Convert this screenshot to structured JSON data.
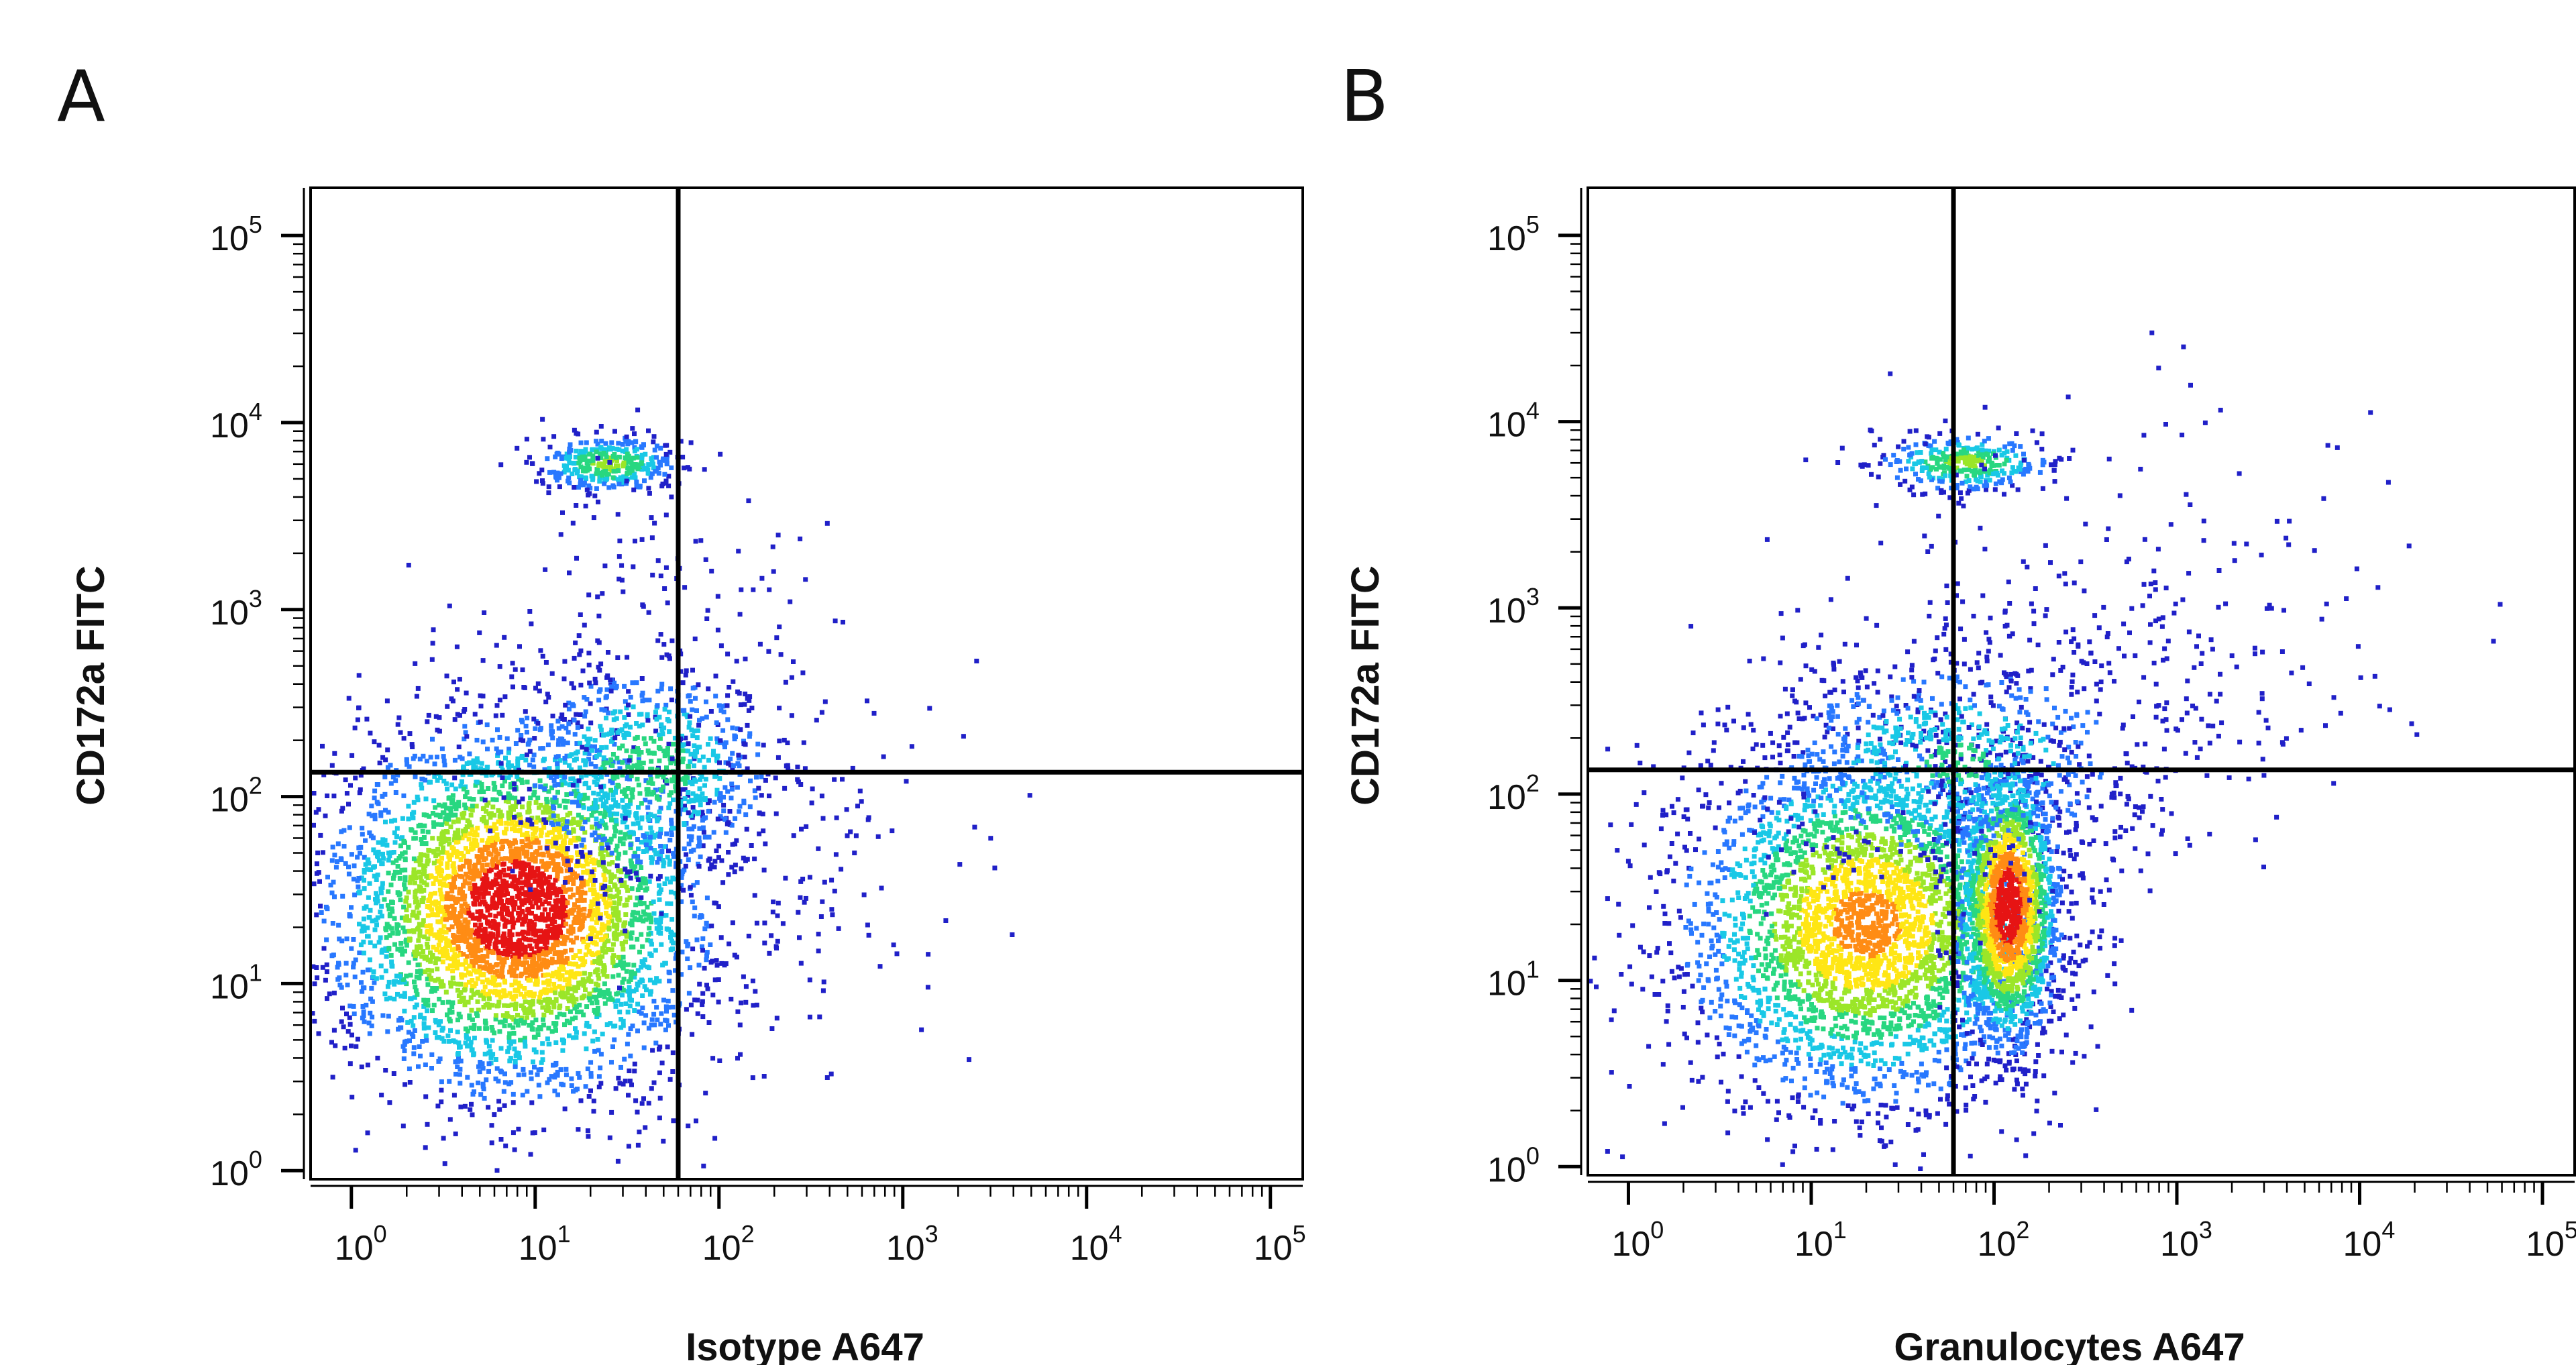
{
  "chart_data": [
    {
      "type": "scatter",
      "panel_label": "A",
      "xlabel": "Isotype A647",
      "ylabel": "CD172a FITC",
      "x_scale": "log",
      "y_scale": "log",
      "xlim": [
        0.6,
        150000
      ],
      "ylim": [
        0.9,
        180000
      ],
      "x_ticks": [
        {
          "base": "10",
          "exp": "0",
          "value": 1
        },
        {
          "base": "10",
          "exp": "1",
          "value": 10
        },
        {
          "base": "10",
          "exp": "2",
          "value": 100
        },
        {
          "base": "10",
          "exp": "3",
          "value": 1000
        },
        {
          "base": "10",
          "exp": "4",
          "value": 10000
        },
        {
          "base": "10",
          "exp": "5",
          "value": 100000
        }
      ],
      "y_ticks": [
        {
          "base": "10",
          "exp": "0",
          "value": 1
        },
        {
          "base": "10",
          "exp": "1",
          "value": 10
        },
        {
          "base": "10",
          "exp": "2",
          "value": 100
        },
        {
          "base": "10",
          "exp": "3",
          "value": 1000
        },
        {
          "base": "10",
          "exp": "4",
          "value": 10000
        },
        {
          "base": "10",
          "exp": "5",
          "value": 100000
        }
      ],
      "quadrant_gates": {
        "x": 60,
        "y": 135
      },
      "grid": false,
      "colormap": [
        "#2020c8",
        "#2878ff",
        "#19c8e6",
        "#28d780",
        "#9be628",
        "#ffe614",
        "#ff8c14",
        "#e61414"
      ],
      "populations": [
        {
          "x_center": 8,
          "y_center": 25,
          "x_spread": 0.5,
          "y_spread": 0.48,
          "density": 1.0,
          "events": 4200
        },
        {
          "x_center": 25,
          "y_center": 6000,
          "x_spread": 0.2,
          "y_spread": 0.08,
          "density": 0.55,
          "events": 360
        },
        {
          "x_center": 40,
          "y_center": 140,
          "x_spread": 0.38,
          "y_spread": 0.3,
          "density": 0.45,
          "events": 750
        },
        {
          "x_center": 40,
          "y_center": 900,
          "x_spread": 0.45,
          "y_spread": 0.45,
          "density": 0.05,
          "events": 120
        },
        {
          "x_center": 300,
          "y_center": 50,
          "x_spread": 0.5,
          "y_spread": 0.45,
          "density": 0.05,
          "events": 110
        }
      ]
    },
    {
      "type": "scatter",
      "panel_label": "B",
      "xlabel": "Granulocytes A647",
      "ylabel": "CD172a FITC",
      "x_scale": "log",
      "y_scale": "log",
      "xlim": [
        0.6,
        150000
      ],
      "ylim": [
        0.9,
        180000
      ],
      "x_ticks": [
        {
          "base": "10",
          "exp": "0",
          "value": 1
        },
        {
          "base": "10",
          "exp": "1",
          "value": 10
        },
        {
          "base": "10",
          "exp": "2",
          "value": 100
        },
        {
          "base": "10",
          "exp": "3",
          "value": 1000
        },
        {
          "base": "10",
          "exp": "4",
          "value": 10000
        },
        {
          "base": "10",
          "exp": "5",
          "value": 100000
        }
      ],
      "y_ticks": [
        {
          "base": "10",
          "exp": "0",
          "value": 1
        },
        {
          "base": "10",
          "exp": "1",
          "value": 10
        },
        {
          "base": "10",
          "exp": "2",
          "value": 100
        },
        {
          "base": "10",
          "exp": "3",
          "value": 1000
        },
        {
          "base": "10",
          "exp": "4",
          "value": 10000
        },
        {
          "base": "10",
          "exp": "5",
          "value": 100000
        }
      ],
      "quadrant_gates": {
        "x": 60,
        "y": 135
      },
      "grid": false,
      "colormap": [
        "#2020c8",
        "#2878ff",
        "#19c8e6",
        "#28d780",
        "#9be628",
        "#ffe614",
        "#ff8c14",
        "#e61414"
      ],
      "populations": [
        {
          "x_center": 20,
          "y_center": 20,
          "x_spread": 0.5,
          "y_spread": 0.48,
          "density": 0.8,
          "events": 3400
        },
        {
          "x_center": 120,
          "y_center": 25,
          "x_spread": 0.14,
          "y_spread": 0.38,
          "density": 1.0,
          "events": 1800
        },
        {
          "x_center": 70,
          "y_center": 6000,
          "x_spread": 0.25,
          "y_spread": 0.08,
          "density": 0.55,
          "events": 340
        },
        {
          "x_center": 60,
          "y_center": 150,
          "x_spread": 0.55,
          "y_spread": 0.3,
          "density": 0.4,
          "events": 700
        },
        {
          "x_center": 400,
          "y_center": 700,
          "x_spread": 0.75,
          "y_spread": 0.6,
          "density": 0.05,
          "events": 320
        }
      ]
    }
  ]
}
